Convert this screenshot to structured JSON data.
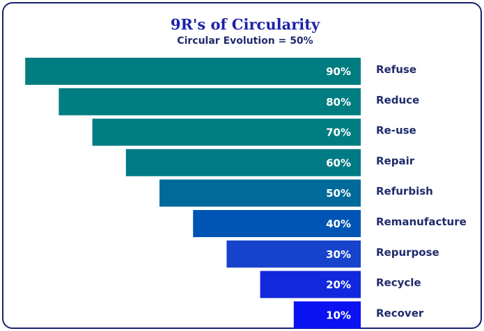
{
  "chart_data": {
    "type": "bar",
    "orientation": "horizontal",
    "title": "9R's of Circularity",
    "subtitle": "Circular Evolution = 50%",
    "categories": [
      "Refuse",
      "Reduce",
      "Re-use",
      "Repair",
      "Refurbish",
      "Remanufacture",
      "Repurpose",
      "Recycle",
      "Recover"
    ],
    "values": [
      90,
      80,
      70,
      60,
      50,
      40,
      30,
      20,
      10
    ],
    "value_labels": [
      "90%",
      "80%",
      "70%",
      "60%",
      "50%",
      "40%",
      "30%",
      "20%",
      "10%"
    ],
    "colors": [
      "#007d80",
      "#007d80",
      "#007d80",
      "#007a84",
      "#006a9a",
      "#0055b4",
      "#1742cb",
      "#1128dc",
      "#0a12f2"
    ]
  }
}
